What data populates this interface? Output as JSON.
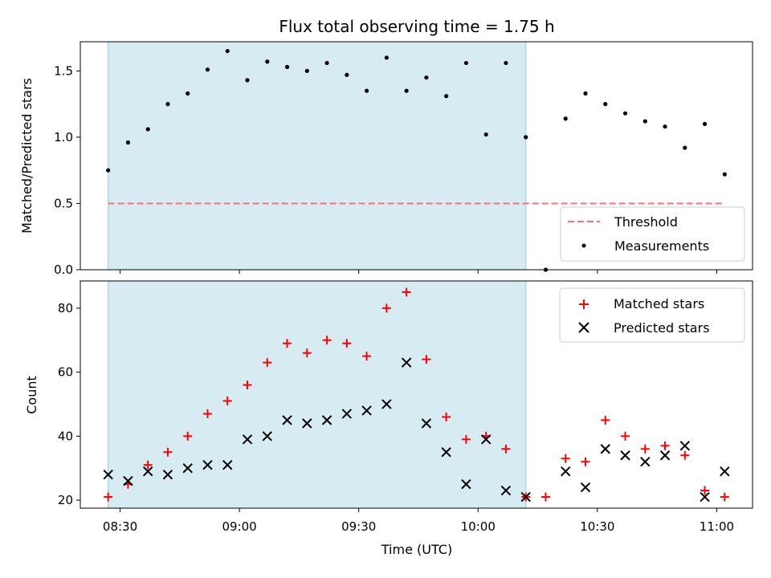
{
  "chart_data": [
    {
      "type": "scatter",
      "title": "Flux total observing time = 1.75 h",
      "ylabel": "Matched/Predicted stars",
      "ylim": [
        0,
        1.72
      ],
      "yticks": [
        "0.0",
        "0.5",
        "1.0",
        "1.5"
      ],
      "shaded_region": {
        "x_start": "08:27",
        "x_end": "10:12",
        "color": "#add8e6"
      },
      "threshold": {
        "name": "Threshold",
        "value": 0.5,
        "x_start": "08:27",
        "x_end": "11:02",
        "color": "#ff7070",
        "style": "dashed"
      },
      "series": [
        {
          "name": "Measurements",
          "color": "#000000",
          "marker": "dot",
          "points": [
            [
              "08:27",
              0.75
            ],
            [
              "08:32",
              0.96
            ],
            [
              "08:37",
              1.06
            ],
            [
              "08:42",
              1.25
            ],
            [
              "08:47",
              1.33
            ],
            [
              "08:52",
              1.51
            ],
            [
              "08:57",
              1.65
            ],
            [
              "09:02",
              1.43
            ],
            [
              "09:07",
              1.57
            ],
            [
              "09:12",
              1.53
            ],
            [
              "09:17",
              1.5
            ],
            [
              "09:22",
              1.56
            ],
            [
              "09:27",
              1.47
            ],
            [
              "09:32",
              1.35
            ],
            [
              "09:37",
              1.6
            ],
            [
              "09:42",
              1.35
            ],
            [
              "09:47",
              1.45
            ],
            [
              "09:52",
              1.31
            ],
            [
              "09:57",
              1.56
            ],
            [
              "10:02",
              1.02
            ],
            [
              "10:07",
              1.56
            ],
            [
              "10:12",
              1.0
            ],
            [
              "10:17",
              0.0
            ],
            [
              "10:22",
              1.14
            ],
            [
              "10:27",
              1.33
            ],
            [
              "10:32",
              1.25
            ],
            [
              "10:37",
              1.18
            ],
            [
              "10:42",
              1.12
            ],
            [
              "10:47",
              1.08
            ],
            [
              "10:52",
              0.92
            ],
            [
              "10:57",
              1.1
            ],
            [
              "11:02",
              0.72
            ]
          ]
        }
      ],
      "legend": {
        "placement": "lower-right",
        "entries": [
          "Threshold",
          "Measurements"
        ]
      },
      "grid": false
    },
    {
      "type": "scatter",
      "xlabel": "Time (UTC)",
      "ylabel": "Count",
      "ylim": [
        17.5,
        88.5
      ],
      "yticks": [
        "20",
        "40",
        "60",
        "80"
      ],
      "xticks": [
        "08:30",
        "09:00",
        "09:30",
        "10:00",
        "10:30",
        "11:00"
      ],
      "xlim": [
        "08:20",
        "11:09"
      ],
      "shaded_region": {
        "x_start": "08:27",
        "x_end": "10:12",
        "color": "#add8e6"
      },
      "series": [
        {
          "name": "Matched stars",
          "color": "#ff0000",
          "marker": "plus",
          "points": [
            [
              "08:27",
              21
            ],
            [
              "08:32",
              25
            ],
            [
              "08:37",
              31
            ],
            [
              "08:42",
              35
            ],
            [
              "08:47",
              40
            ],
            [
              "08:52",
              47
            ],
            [
              "08:57",
              51
            ],
            [
              "09:02",
              56
            ],
            [
              "09:07",
              63
            ],
            [
              "09:12",
              69
            ],
            [
              "09:17",
              66
            ],
            [
              "09:22",
              70
            ],
            [
              "09:27",
              69
            ],
            [
              "09:32",
              65
            ],
            [
              "09:37",
              80
            ],
            [
              "09:42",
              85
            ],
            [
              "09:47",
              64
            ],
            [
              "09:52",
              46
            ],
            [
              "09:57",
              39
            ],
            [
              "10:02",
              40
            ],
            [
              "10:07",
              36
            ],
            [
              "10:12",
              21
            ],
            [
              "10:17",
              21
            ],
            [
              "10:22",
              33
            ],
            [
              "10:27",
              32
            ],
            [
              "10:32",
              45
            ],
            [
              "10:37",
              40
            ],
            [
              "10:42",
              36
            ],
            [
              "10:47",
              37
            ],
            [
              "10:52",
              34
            ],
            [
              "10:57",
              23
            ],
            [
              "11:02",
              21
            ]
          ]
        },
        {
          "name": "Predicted stars",
          "color": "#000000",
          "marker": "x",
          "points": [
            [
              "08:27",
              28
            ],
            [
              "08:32",
              26
            ],
            [
              "08:37",
              29
            ],
            [
              "08:42",
              28
            ],
            [
              "08:47",
              30
            ],
            [
              "08:52",
              31
            ],
            [
              "08:57",
              31
            ],
            [
              "09:02",
              39
            ],
            [
              "09:07",
              40
            ],
            [
              "09:12",
              45
            ],
            [
              "09:17",
              44
            ],
            [
              "09:22",
              45
            ],
            [
              "09:27",
              47
            ],
            [
              "09:32",
              48
            ],
            [
              "09:37",
              50
            ],
            [
              "09:42",
              63
            ],
            [
              "09:47",
              44
            ],
            [
              "09:52",
              35
            ],
            [
              "09:57",
              25
            ],
            [
              "10:02",
              39
            ],
            [
              "10:07",
              23
            ],
            [
              "10:12",
              21
            ],
            [
              "10:22",
              29
            ],
            [
              "10:27",
              24
            ],
            [
              "10:32",
              36
            ],
            [
              "10:37",
              34
            ],
            [
              "10:42",
              32
            ],
            [
              "10:47",
              34
            ],
            [
              "10:52",
              37
            ],
            [
              "10:57",
              21
            ],
            [
              "11:02",
              29
            ]
          ]
        }
      ],
      "legend": {
        "placement": "upper-right",
        "entries": [
          "Matched stars",
          "Predicted stars"
        ]
      },
      "grid": false
    }
  ]
}
